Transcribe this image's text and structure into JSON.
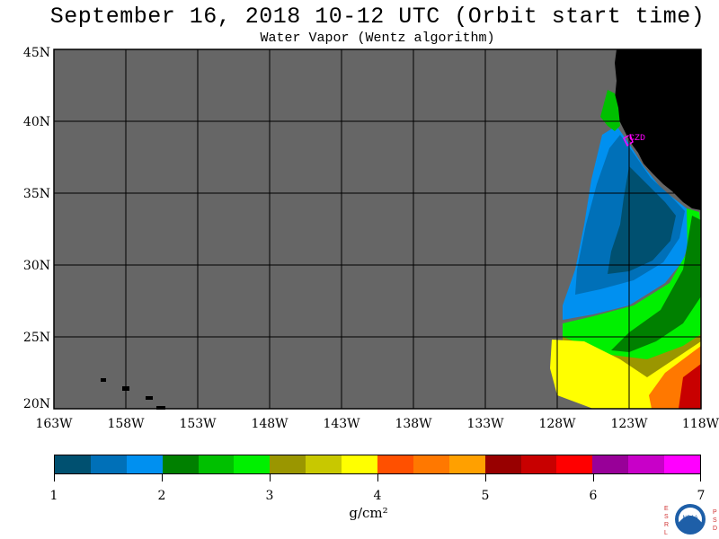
{
  "header": {
    "title": "September 16, 2018  10-12 UTC  (Orbit start time)",
    "subtitle": "Water Vapor (Wentz algorithm)"
  },
  "map": {
    "lat_labels": [
      "45N",
      "40N",
      "35N",
      "30N",
      "25N",
      "20N"
    ],
    "lon_labels": [
      "163W",
      "158W",
      "153W",
      "148W",
      "143W",
      "138W",
      "133W",
      "128W",
      "123W",
      "118W"
    ],
    "lat_range": [
      20,
      45
    ],
    "lon_range": [
      -163,
      -118
    ],
    "station_label": "CZD",
    "colors": {
      "nodata": "#666666",
      "land": "#000000",
      "grid": "#000000",
      "station": "#ff00ff"
    }
  },
  "colorbar": {
    "tick_labels": [
      "1",
      "2",
      "3",
      "4",
      "5",
      "6",
      "7"
    ],
    "units": "g/cm²",
    "range": [
      1,
      7
    ],
    "colors": [
      "#005070",
      "#0070b8",
      "#0090f0",
      "#008000",
      "#00c000",
      "#00f000",
      "#9a9600",
      "#c8c800",
      "#ffff00",
      "#ff5000",
      "#ff7800",
      "#ffa000",
      "#980000",
      "#c80000",
      "#ff0000",
      "#980098",
      "#c800c8",
      "#ff00ff"
    ]
  },
  "logo": {
    "left_letters": "ESRL",
    "right_letters": "PSD",
    "center": "NOAA"
  }
}
